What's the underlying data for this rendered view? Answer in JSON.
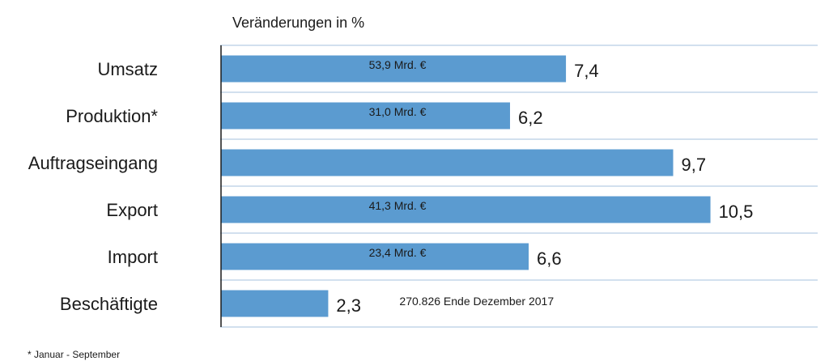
{
  "chart_data": {
    "type": "bar",
    "orientation": "horizontal",
    "title": "Veränderungen in %",
    "categories": [
      "Umsatz",
      "Produktion*",
      "Auftragseingang",
      "Export",
      "Import",
      "Beschäftigte"
    ],
    "values": [
      7.4,
      6.2,
      9.7,
      10.5,
      6.6,
      2.3
    ],
    "value_labels": [
      "7,4",
      "6,2",
      "9,7",
      "10,5",
      "6,6",
      "2,3"
    ],
    "bar_annotations": [
      "53,9 Mrd. €",
      "31,0 Mrd. €",
      "",
      "41,3 Mrd. €",
      "23,4 Mrd. €",
      ""
    ],
    "side_annotations": [
      "",
      "",
      "",
      "",
      "",
      "270.826 Ende Dezember 2017"
    ],
    "footnote": "* Januar - September",
    "xlim": [
      0,
      12.8
    ],
    "grid": true,
    "bar_color": "#5b9bd0",
    "grid_color": "#b8cde4",
    "axis_color": "#1a1a1a"
  }
}
